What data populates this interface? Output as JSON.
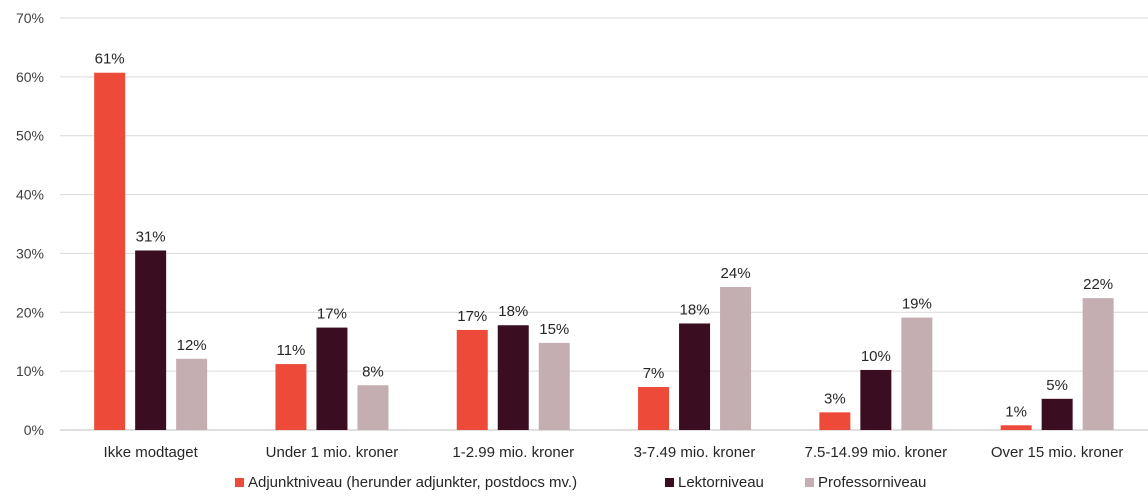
{
  "chart_data": {
    "type": "bar",
    "title": "",
    "xlabel": "",
    "ylabel": "",
    "ylim": [
      0,
      70
    ],
    "y_ticks": [
      "0%",
      "10%",
      "20%",
      "30%",
      "40%",
      "50%",
      "60%",
      "70%"
    ],
    "y_tick_values": [
      0,
      10,
      20,
      30,
      40,
      50,
      60,
      70
    ],
    "grid": true,
    "legend_position": "bottom",
    "categories": [
      "Ikke modtaget",
      "Under 1 mio. kroner",
      "1-2.99 mio. kroner",
      "3-7.49 mio. kroner",
      "7.5-14.99 mio. kroner",
      "Over 15 mio. kroner"
    ],
    "series": [
      {
        "name": "Adjunktniveau (herunder adjunkter, postdocs mv.)",
        "color": "#EE4A3A",
        "values": [
          60.7,
          11.2,
          17.0,
          7.3,
          3.0,
          0.8
        ],
        "labels": [
          "61%",
          "11%",
          "17%",
          "7%",
          "3%",
          "1%"
        ]
      },
      {
        "name": "Lektorniveau",
        "color": "#3B0D20",
        "values": [
          30.5,
          17.4,
          17.8,
          18.1,
          10.2,
          5.3
        ],
        "labels": [
          "31%",
          "17%",
          "18%",
          "18%",
          "10%",
          "5%"
        ]
      },
      {
        "name": "Professorniveau",
        "color": "#C4AEB2",
        "values": [
          12.1,
          7.6,
          14.8,
          24.3,
          19.1,
          22.4
        ],
        "labels": [
          "12%",
          "8%",
          "15%",
          "24%",
          "19%",
          "22%"
        ]
      }
    ]
  }
}
